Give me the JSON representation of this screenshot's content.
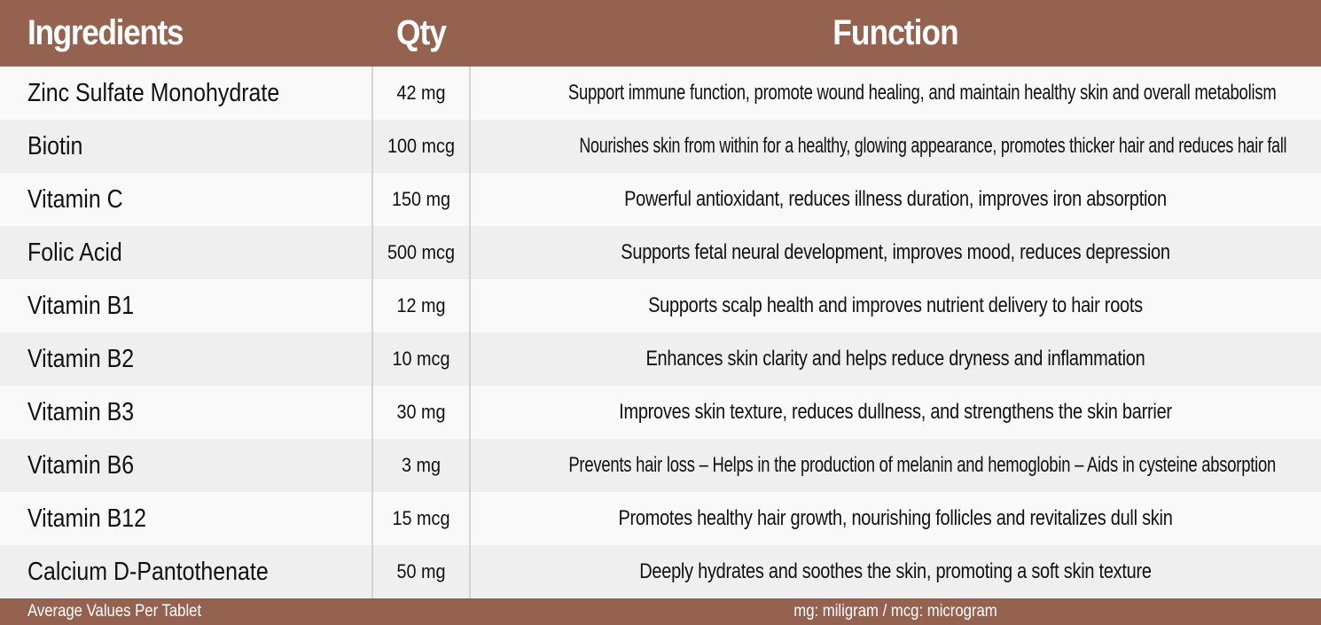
{
  "colors": {
    "header_bg": "#956250",
    "header_text": "#ffffff",
    "row_light": "#f9f9f9",
    "row_dark": "#efefef",
    "divider": "#d4d4d4"
  },
  "table": {
    "headers": {
      "ingredients": "Ingredients",
      "qty": "Qty",
      "function": "Function"
    },
    "rows": [
      {
        "ingredient": "Zinc Sulfate Monohydrate",
        "qty": "42 mg",
        "function": "Support immune function, promote wound healing, and maintain healthy skin and overall metabolism"
      },
      {
        "ingredient": "Biotin",
        "qty": "100 mcg",
        "function": "Nourishes skin from within for a healthy, glowing appearance, promotes thicker hair and reduces hair fall"
      },
      {
        "ingredient": "Vitamin C",
        "qty": "150 mg",
        "function": "Powerful antioxidant, reduces illness duration, improves iron absorption"
      },
      {
        "ingredient": "Folic Acid",
        "qty": "500 mcg",
        "function": "Supports fetal neural development, improves mood, reduces depression"
      },
      {
        "ingredient": "Vitamin B1",
        "qty": "12 mg",
        "function": "Supports scalp health and improves nutrient delivery to hair roots"
      },
      {
        "ingredient": "Vitamin B2",
        "qty": "10 mcg",
        "function": "Enhances skin clarity and helps reduce dryness and inflammation"
      },
      {
        "ingredient": "Vitamin B3",
        "qty": "30 mg",
        "function": "Improves skin texture, reduces dullness, and strengthens the skin barrier"
      },
      {
        "ingredient": "Vitamin B6",
        "qty": "3 mg",
        "function": "Prevents hair loss – Helps in the production of melanin and hemoglobin – Aids in cysteine absorption"
      },
      {
        "ingredient": "Vitamin B12",
        "qty": "15 mcg",
        "function": "Promotes healthy hair growth, nourishing follicles and revitalizes dull skin"
      },
      {
        "ingredient": "Calcium D-Pantothenate",
        "qty": "50 mg",
        "function": "Deeply hydrates and soothes the skin, promoting a soft skin texture"
      }
    ]
  },
  "footer": {
    "left": "Average Values Per Tablet",
    "right": "mg: miligram / mcg: microgram"
  }
}
